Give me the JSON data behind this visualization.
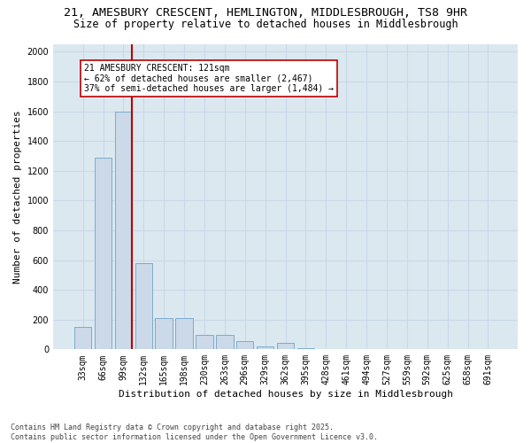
{
  "title_line1": "21, AMESBURY CRESCENT, HEMLINGTON, MIDDLESBROUGH, TS8 9HR",
  "title_line2": "Size of property relative to detached houses in Middlesbrough",
  "xlabel": "Distribution of detached houses by size in Middlesbrough",
  "ylabel": "Number of detached properties",
  "categories": [
    "33sqm",
    "66sqm",
    "99sqm",
    "132sqm",
    "165sqm",
    "198sqm",
    "230sqm",
    "263sqm",
    "296sqm",
    "329sqm",
    "362sqm",
    "395sqm",
    "428sqm",
    "461sqm",
    "494sqm",
    "527sqm",
    "559sqm",
    "592sqm",
    "625sqm",
    "658sqm",
    "691sqm"
  ],
  "values": [
    150,
    1290,
    1600,
    580,
    210,
    210,
    100,
    95,
    55,
    20,
    45,
    5,
    2,
    1,
    1,
    0,
    0,
    0,
    0,
    0,
    0
  ],
  "bar_color": "#ccd9e8",
  "bar_edge_color": "#7aacce",
  "vline_color": "#bb0000",
  "annotation_text": "21 AMESBURY CRESCENT: 121sqm\n← 62% of detached houses are smaller (2,467)\n37% of semi-detached houses are larger (1,484) →",
  "annotation_box_facecolor": "#ffffff",
  "annotation_box_edgecolor": "#bb0000",
  "ylim": [
    0,
    2050
  ],
  "yticks": [
    0,
    200,
    400,
    600,
    800,
    1000,
    1200,
    1400,
    1600,
    1800,
    2000
  ],
  "grid_color": "#c8d8e8",
  "plot_bg_color": "#dce8f0",
  "footnote": "Contains HM Land Registry data © Crown copyright and database right 2025.\nContains public sector information licensed under the Open Government Licence v3.0.",
  "title_fontsize": 9.5,
  "subtitle_fontsize": 8.5,
  "xlabel_fontsize": 8,
  "ylabel_fontsize": 8,
  "tick_fontsize": 7,
  "annot_fontsize": 7,
  "footnote_fontsize": 6
}
